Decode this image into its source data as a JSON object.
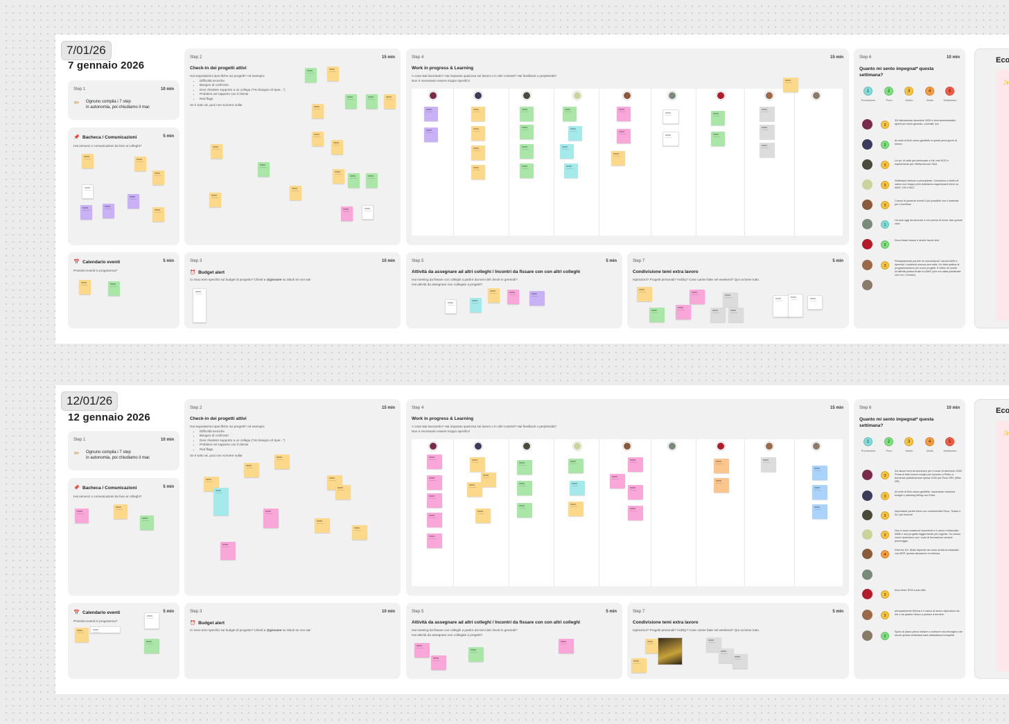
{
  "board1": {
    "chip": "7/01/26",
    "title": "7 gennaio 2026"
  },
  "board2": {
    "chip": "12/01/26",
    "title": "12 gennaio 2026"
  },
  "step1": {
    "step": "Step 1",
    "duration": "10 min",
    "text_line1": "Ognuno compila i 7 step",
    "text_line2": "in autonomia, poi chiudiamo il mac"
  },
  "bacheca": {
    "title": "Bacheca / Comunicazioni",
    "duration": "5 min",
    "desc": "Hai annunci o comunicazioni da fare ai colleghi?"
  },
  "calendario": {
    "title": "Calendario eventi",
    "duration": "5 min",
    "desc": "Prossimi eventi in programma?"
  },
  "step2": {
    "step": "Step 2",
    "duration": "15 min",
    "title": "Check-in dei progetti attivi",
    "desc": "Hai segnalazioni specifiche sui progetti? Ad esempio:",
    "bullets": [
      "Difficoltà tecniche",
      "Bisogno di confronto",
      "Devi chiedere supporto a un collega (\"Ho bisogno di Xper...\")",
      "Problemi nel rapporto con il cliente",
      "Red flags"
    ],
    "footer": "Se è tutto ok, puoi non scrivere nulla!"
  },
  "step3": {
    "step": "Step 3",
    "duration": "10 min",
    "title": "Budget alert",
    "desc_pre": "Ci sono temi specifici sul budget di progetto? Chiedi a ",
    "desc_mention": "@giovane",
    "desc_post": " su Slack se non sai!"
  },
  "step4": {
    "step": "Step 4",
    "duration": "15 min",
    "title": "Work in progress & Learning",
    "desc1": "A cosa stai lavorando? Hai imparato qualcosa sul lavoro o in altri contesti? Hai feedback o perplessità?",
    "desc2": "Non è necessario essere troppo specifici!"
  },
  "step5": {
    "step": "Step 5",
    "duration": "5 min",
    "title": "Attività da assegnare ad altri colleghi / Incontri da fissare con con altri colleghi",
    "desc1": "Hai meeting da fissare con colleghi a partire dai temi del check-in generali?",
    "desc2": "Hai attività da assegnare non collegate a progetti?"
  },
  "step6": {
    "step": "Step 6",
    "duration": "10 min",
    "title_l1": "Quanto mi sento impegnat* questa",
    "title_l2": "settimana?",
    "scale": [
      {
        "n": "1",
        "label": "Pochissimo",
        "color": "#7fdcd8"
      },
      {
        "n": "2",
        "label": "Poco",
        "color": "#7fe07e"
      },
      {
        "n": "3",
        "label": "Medio",
        "color": "#f8c43c"
      },
      {
        "n": "4",
        "label": "Molto",
        "color": "#f99a3d"
      },
      {
        "n": "5",
        "label": "Moltissimo",
        "color": "#f25b45"
      }
    ]
  },
  "step7": {
    "step": "Step 7",
    "duration": "5 min",
    "title": "Condivisione temi extra lavoro",
    "desc": "Ispirazioni? Progetti personali? Hobby? Cose carine fatte nel weekend? Qui va bene tutto."
  },
  "edge_title": "Eco",
  "board1_rows": [
    {
      "score": "3",
      "text": "3/4 fatturazione dicembre 2025 e temi amministrativi aperti per inizio gennaio, contratti, ecc"
    },
    {
      "score": "2",
      "text": "Al netto di Bob carico gestibile in questi primi giorni di rientro"
    },
    {
      "score": "3",
      "text": "Un po' di ciatti per telefonare a Ihli, test ROS e esperimento per Gitetta Accorn SAA"
    },
    {
      "score": "3",
      "text": "Settimana intensa a principiante. Cerchiamo a livello di carico non troppo però dobbiamo organizzarci bene su AWS, OS e MC2"
    },
    {
      "score": "3",
      "text": "Conosi di portarne eventi il più possibile con il materiali per Limenflow"
    },
    {
      "score": "1",
      "text": "Ho solo oggi da lavorare e non penso di dover fare grosse robe"
    },
    {
      "score": "2",
      "text": "Devo fisare issues e anche faccio test"
    },
    {
      "score": "3",
      "text": "Principalmente perché ho menanticosi i servizi AWS e riprendo i contenuti ancora una volta. Ho fatto pratica di programmazione per nuovi progetti. E infine ho scelto un'attività pratica finale su AWS (che era stata pianificata con Leo, il bosso)."
    },
    {
      "score": "",
      "text": ""
    }
  ],
  "board2_rows": [
    {
      "score": "3",
      "text": "3/4 alcuni temi da terminare per il mese di dicembre 2025. Prima di tutto lezioni meglio per incontro a Pietro a terminare pianificazione spesa 2026 per Rovo SRL (Sitta DR)"
    },
    {
      "score": "3",
      "text": "Al netto di Bob carico gestibile. Importante revisione budget e planning billing con Erika"
    },
    {
      "score": "3",
      "text": "Importante partire bene con commerciale Revo, Tiziani e ALI per favorire"
    },
    {
      "score": "3",
      "text": "Non ci sono scadenze imprelenti e il carico è bilanciato. AWB e uno progetto leggermente più urgente. Su chiuso vorrei riprendere con i corsi di formazione venerdì pomeriggio."
    },
    {
      "score": "4",
      "text": "Direi tra 3/4. Molto dipende da come andrà la chiamata con MEP, questa situazione mi stressa"
    },
    {
      "score": "",
      "text": ""
    },
    {
      "score": "3",
      "text": "Avvo finire ROS a tuto BIA"
    },
    {
      "score": "3",
      "text": "principalmente Eritrea e il carico di lavoro dipendono da me e da quanto riesco a portare a termine."
    },
    {
      "score": "2",
      "text": "Spero di piano pieno iniziare a contiurre ma immagino che sicuro questa settimana sarà abbastanza tranquilla"
    }
  ]
}
